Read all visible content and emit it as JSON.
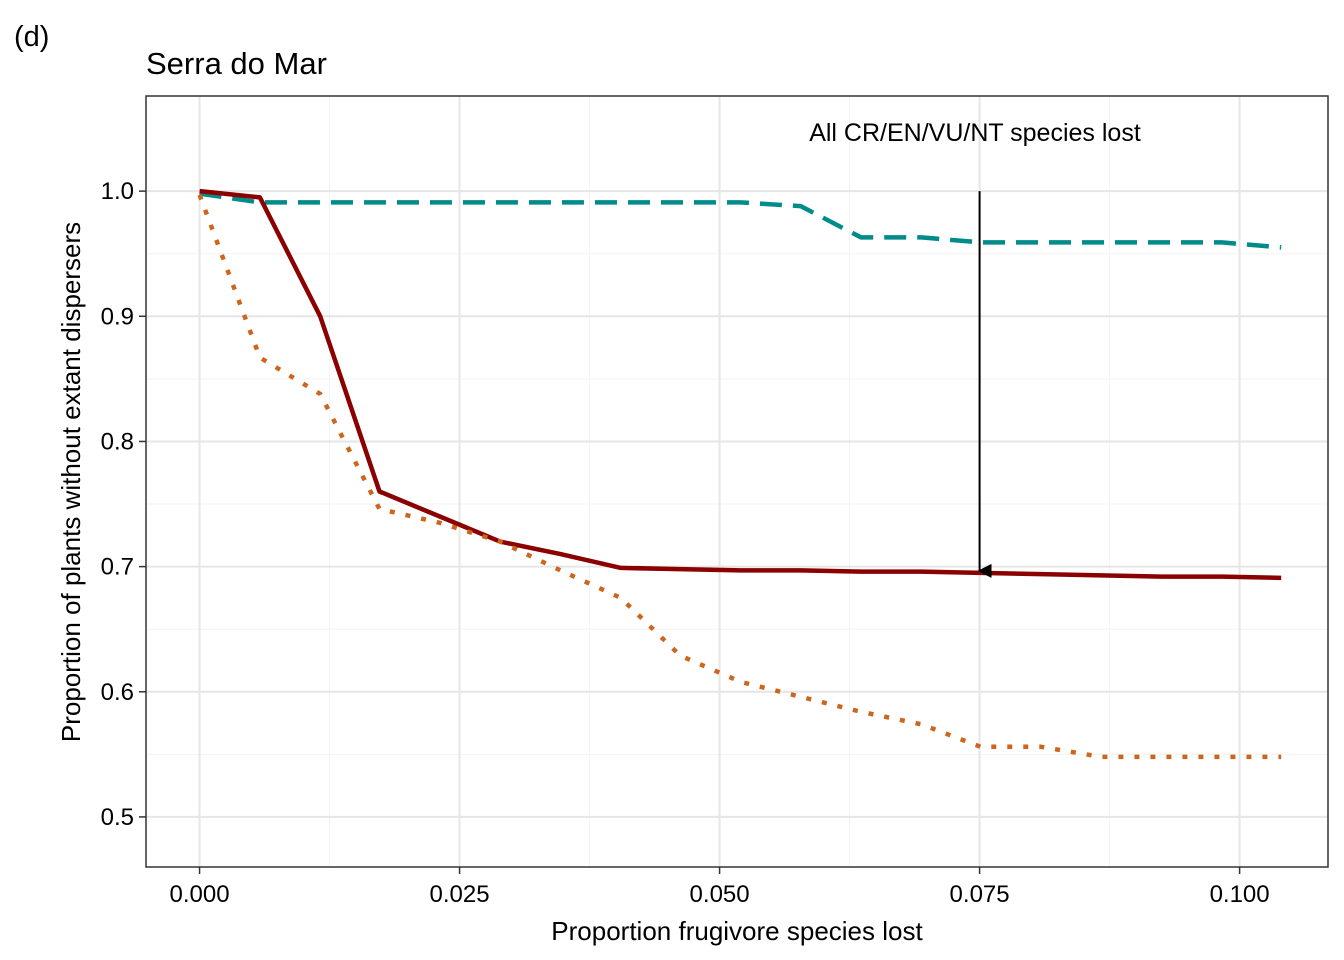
{
  "panel_label": "(d)",
  "chart_data": {
    "type": "line",
    "title": "Serra do Mar",
    "xlabel": "Proportion frugivore species lost",
    "ylabel": "Proportion of plants without extant dispersers",
    "xlim": [
      -0.00515,
      0.1085
    ],
    "ylim": [
      0.46,
      1.076
    ],
    "x_ticks": [
      0.0,
      0.025,
      0.05,
      0.075,
      0.1
    ],
    "x_tick_labels": [
      "0.000",
      "0.025",
      "0.050",
      "0.075",
      "0.100"
    ],
    "y_ticks": [
      0.5,
      0.6,
      0.7,
      0.8,
      0.9,
      1.0
    ],
    "y_tick_labels": [
      "0.5",
      "0.6",
      "0.7",
      "0.8",
      "0.9",
      "1.0"
    ],
    "grid": true,
    "legend": "none",
    "series": [
      {
        "color": "#008B8B",
        "style": "dashed",
        "x": [
          0.0,
          0.0058,
          0.0116,
          0.0173,
          0.0231,
          0.0289,
          0.0347,
          0.0405,
          0.0462,
          0.052,
          0.0578,
          0.0636,
          0.0694,
          0.0751,
          0.0809,
          0.0867,
          0.0925,
          0.0983,
          0.104
        ],
        "y": [
          0.998,
          0.991,
          0.991,
          0.991,
          0.991,
          0.991,
          0.991,
          0.991,
          0.991,
          0.991,
          0.988,
          0.963,
          0.963,
          0.959,
          0.959,
          0.959,
          0.959,
          0.959,
          0.955
        ]
      },
      {
        "color": "#8B0000",
        "style": "solid",
        "x": [
          0.0,
          0.0058,
          0.0116,
          0.0173,
          0.0231,
          0.0289,
          0.0347,
          0.0405,
          0.0462,
          0.052,
          0.0578,
          0.0636,
          0.0694,
          0.0751,
          0.0809,
          0.0867,
          0.0925,
          0.0983,
          0.104
        ],
        "y": [
          1.0,
          0.995,
          0.9,
          0.76,
          0.74,
          0.72,
          0.71,
          0.699,
          0.698,
          0.697,
          0.697,
          0.696,
          0.696,
          0.695,
          0.694,
          0.693,
          0.692,
          0.692,
          0.691
        ]
      },
      {
        "color": "#CD661D",
        "style": "dotted",
        "x": [
          0.0,
          0.0058,
          0.0116,
          0.0173,
          0.0231,
          0.0289,
          0.0347,
          0.0405,
          0.0462,
          0.052,
          0.0578,
          0.0636,
          0.0694,
          0.0751,
          0.0809,
          0.0867,
          0.0925,
          0.0983,
          0.104
        ],
        "y": [
          0.997,
          0.867,
          0.838,
          0.746,
          0.735,
          0.72,
          0.697,
          0.675,
          0.629,
          0.608,
          0.596,
          0.584,
          0.574,
          0.556,
          0.556,
          0.548,
          0.548,
          0.548,
          0.548
        ]
      }
    ],
    "annotation": {
      "text": "All CR/EN/VU/NT species lost",
      "arrow_x": 0.075,
      "arrow_from_y": 1.0,
      "arrow_to_y": 0.695
    }
  }
}
